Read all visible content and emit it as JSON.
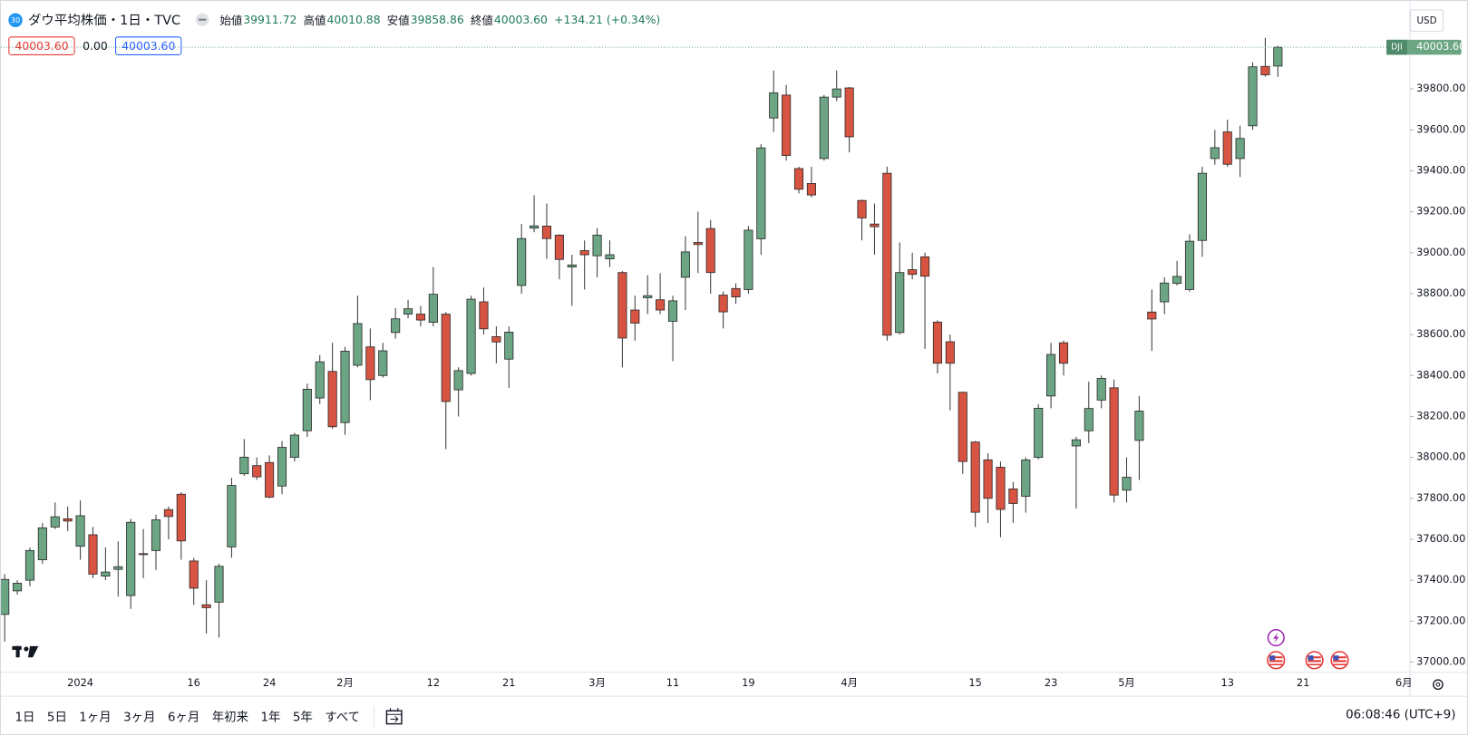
{
  "header": {
    "badge": "30",
    "title": "ダウ平均株価・1日・TVC",
    "ohlc": [
      {
        "label": "始値",
        "value": "39911.72"
      },
      {
        "label": "高値",
        "value": "40010.88"
      },
      {
        "label": "安値",
        "value": "39858.86"
      },
      {
        "label": "終値",
        "value": "40003.60"
      }
    ],
    "change": "+134.21 (+0.34%)"
  },
  "legend_row": [
    "40003.60",
    "0.00",
    "40003.60"
  ],
  "currency": "USD",
  "price_tag": {
    "symbol": "DJI",
    "label": "40003.60"
  },
  "toolbar": {
    "ranges": [
      "1日",
      "5日",
      "1ヶ月",
      "3ヶ月",
      "6ヶ月",
      "年初来",
      "1年",
      "5年",
      "すべて"
    ],
    "clock": "06:08:46 (UTC+9)"
  },
  "chart_data": {
    "type": "candlestick",
    "up_color": "#6ba583",
    "down_color": "#d75442",
    "categories": [
      null,
      null,
      null,
      null,
      null,
      null,
      "2024",
      null,
      null,
      null,
      null,
      null,
      null,
      null,
      null,
      "16",
      null,
      null,
      null,
      null,
      null,
      "24",
      null,
      null,
      null,
      null,
      null,
      "2月",
      null,
      null,
      null,
      null,
      null,
      null,
      "12",
      null,
      null,
      null,
      null,
      null,
      "21",
      null,
      null,
      null,
      null,
      null,
      null,
      "3月",
      null,
      null,
      null,
      null,
      null,
      "11",
      null,
      null,
      null,
      null,
      null,
      "19",
      null,
      null,
      null,
      null,
      null,
      null,
      null,
      "4月",
      null,
      null,
      null,
      null,
      null,
      null,
      null,
      null,
      null,
      "15",
      null,
      null,
      null,
      null,
      null,
      "23",
      null,
      null,
      null,
      null,
      null,
      "5月",
      null,
      null,
      null,
      null,
      null,
      null,
      null,
      "13",
      null,
      null,
      null,
      null,
      null,
      "21",
      null,
      null,
      null,
      null,
      null,
      null,
      null,
      "6月"
    ],
    "open": [
      37233,
      37348,
      37400,
      37500,
      37660,
      37700,
      37566,
      37622,
      37420,
      37453,
      37325,
      37530,
      37545,
      37745,
      37820,
      37494,
      37280,
      37293,
      37563,
      37920,
      37960,
      37975,
      37860,
      38000,
      38130,
      38290,
      38420,
      38170,
      38450,
      38540,
      38400,
      38610,
      38700,
      38700,
      38660,
      38700,
      38330,
      38410,
      38760,
      38590,
      38480,
      38840,
      39120,
      39130,
      39086,
      38930,
      39010,
      38985,
      38970,
      38903,
      38720,
      38780,
      38770,
      38665,
      38880,
      39050,
      39118,
      38793,
      38825,
      38820,
      39068,
      39658,
      39770,
      39411,
      39338,
      39460,
      39760,
      39805,
      39255,
      39140,
      39388,
      38610,
      38917,
      38980,
      38661,
      38565,
      38318,
      38075,
      37988,
      37952,
      37846,
      37810,
      38000,
      38300,
      38560,
      38056,
      38130,
      38280,
      38340,
      37840,
      38083,
      38710,
      38760,
      38850,
      38820,
      39060,
      39460,
      39590,
      39460,
      39620,
      39910,
      39911.72,
      null,
      null,
      null,
      null,
      null,
      null,
      null,
      null,
      null,
      null
    ],
    "high": [
      37430,
      37400,
      37560,
      37680,
      37780,
      37760,
      37790,
      37660,
      37560,
      37590,
      37700,
      37650,
      37720,
      37760,
      37830,
      37510,
      37400,
      37480,
      37900,
      38090,
      38000,
      38010,
      38080,
      38120,
      38360,
      38500,
      38560,
      38540,
      38790,
      38630,
      38560,
      38730,
      38770,
      38740,
      38930,
      38710,
      38440,
      38790,
      38830,
      38640,
      38640,
      39140,
      39280,
      39240,
      39090,
      38990,
      39060,
      39120,
      39060,
      38910,
      38790,
      38890,
      38900,
      38790,
      39080,
      39200,
      39160,
      38810,
      38850,
      39130,
      39530,
      39890,
      39820,
      39420,
      39420,
      39770,
      39890,
      39810,
      39260,
      39240,
      39420,
      39050,
      39000,
      39000,
      38670,
      38600,
      38320,
      38080,
      38020,
      37980,
      37880,
      38000,
      38260,
      38560,
      38570,
      38100,
      38370,
      38400,
      38380,
      38000,
      38300,
      38820,
      38880,
      38960,
      39090,
      39420,
      39600,
      39650,
      39620,
      39930,
      40050,
      40010.88,
      null,
      null,
      null,
      null,
      null,
      null,
      null,
      null,
      null,
      null
    ],
    "low": [
      37100,
      37330,
      37370,
      37480,
      37650,
      37640,
      37500,
      37410,
      37400,
      37320,
      37260,
      37410,
      37450,
      37600,
      37500,
      37280,
      37140,
      37120,
      37510,
      37910,
      37890,
      37800,
      37820,
      37980,
      38100,
      38260,
      38140,
      38110,
      38440,
      38280,
      38390,
      38580,
      38680,
      38640,
      38640,
      38040,
      38200,
      38400,
      38600,
      38460,
      38340,
      38800,
      39100,
      38970,
      38870,
      38740,
      38820,
      38880,
      38930,
      38440,
      38570,
      38700,
      38700,
      38470,
      38720,
      38900,
      38800,
      38630,
      38750,
      38800,
      38990,
      39590,
      39450,
      39290,
      39270,
      39450,
      39740,
      39490,
      39060,
      38990,
      38570,
      38600,
      38870,
      38530,
      38410,
      38230,
      37920,
      37660,
      37680,
      37610,
      37680,
      37730,
      37990,
      38240,
      38400,
      37750,
      38070,
      38240,
      37780,
      37780,
      37890,
      38520,
      38700,
      38840,
      38810,
      38980,
      39430,
      39420,
      39370,
      39600,
      39860,
      39858.86,
      null,
      null,
      null,
      null,
      null,
      null,
      null,
      null,
      null,
      null
    ],
    "close": [
      37404,
      37385,
      37545,
      37656,
      37710,
      37689,
      37715,
      37430,
      37440,
      37466,
      37683,
      37525,
      37695,
      37711,
      37592,
      37361,
      37266,
      37468,
      37863,
      38001,
      37905,
      37806,
      38049,
      38109,
      38333,
      38467,
      38150,
      38519,
      38654,
      38380,
      38521,
      38677,
      38726,
      38671,
      38797,
      38273,
      38424,
      38773,
      38628,
      38564,
      38612,
      39069,
      39131,
      39069,
      38967,
      38940,
      38990,
      39086,
      38990,
      38583,
      38656,
      38790,
      38720,
      38765,
      39004,
      39040,
      38903,
      38711,
      38784,
      39110,
      39512,
      39781,
      39475,
      39310,
      39282,
      39760,
      39800,
      39566,
      39170,
      39127,
      38597,
      38903,
      38894,
      38885,
      38460,
      38460,
      37980,
      37732,
      37800,
      37746,
      37775,
      37988,
      38240,
      38503,
      38460,
      38086,
      38239,
      38386,
      37816,
      37903,
      38226,
      38676,
      38852,
      38884,
      39056,
      39388,
      39513,
      39432,
      39558,
      39908,
      39869,
      40003.6,
      null,
      null,
      null,
      null,
      null,
      null,
      null,
      null,
      null,
      null
    ],
    "ylim": [
      36950,
      40207
    ],
    "yticks": [
      {
        "value": 37000,
        "label": "37000.00"
      },
      {
        "value": 37200,
        "label": "37200.00"
      },
      {
        "value": 37400,
        "label": "37400.00"
      },
      {
        "value": 37600,
        "label": "37600.00"
      },
      {
        "value": 37800,
        "label": "37800.00"
      },
      {
        "value": 38000,
        "label": "38000.00"
      },
      {
        "value": 38200,
        "label": "38200.00"
      },
      {
        "value": 38400,
        "label": "38400.00"
      },
      {
        "value": 38600,
        "label": "38600.00"
      },
      {
        "value": 38800,
        "label": "38800.00"
      },
      {
        "value": 39000,
        "label": "39000.00"
      },
      {
        "value": 39200,
        "label": "39200.00"
      },
      {
        "value": 39400,
        "label": "39400.00"
      },
      {
        "value": 39600,
        "label": "39600.00"
      },
      {
        "value": 39800,
        "label": "39800.00"
      }
    ],
    "grid": false
  }
}
